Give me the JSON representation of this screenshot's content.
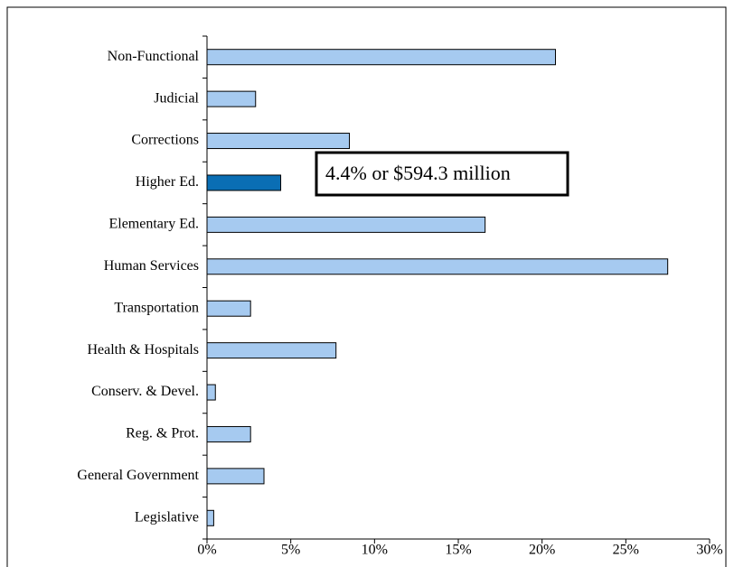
{
  "chart_data": {
    "type": "bar",
    "orientation": "horizontal",
    "categories": [
      "Non-Functional",
      "Judicial",
      "Corrections",
      "Higher Ed.",
      "Elementary Ed.",
      "Human Services",
      "Transportation",
      "Health & Hospitals",
      "Conserv. & Devel.",
      "Reg. & Prot.",
      "General Government",
      "Legislative"
    ],
    "values": [
      20.8,
      2.9,
      8.5,
      4.4,
      16.6,
      27.5,
      2.6,
      7.7,
      0.5,
      2.6,
      3.4,
      0.4
    ],
    "colors": [
      "#a6caf0",
      "#a6caf0",
      "#a6caf0",
      "#0a6eb4",
      "#a6caf0",
      "#a6caf0",
      "#a6caf0",
      "#a6caf0",
      "#a6caf0",
      "#a6caf0",
      "#a6caf0",
      "#a6caf0"
    ],
    "xlim": [
      0,
      30
    ],
    "xticks": [
      {
        "value": 0,
        "label": "0%"
      },
      {
        "value": 5,
        "label": "5%"
      },
      {
        "value": 10,
        "label": "10%"
      },
      {
        "value": 15,
        "label": "15%"
      },
      {
        "value": 20,
        "label": "20%"
      },
      {
        "value": 25,
        "label": "25%"
      },
      {
        "value": 30,
        "label": "30%"
      }
    ],
    "annotation": "4.4% or $594.3 million"
  }
}
